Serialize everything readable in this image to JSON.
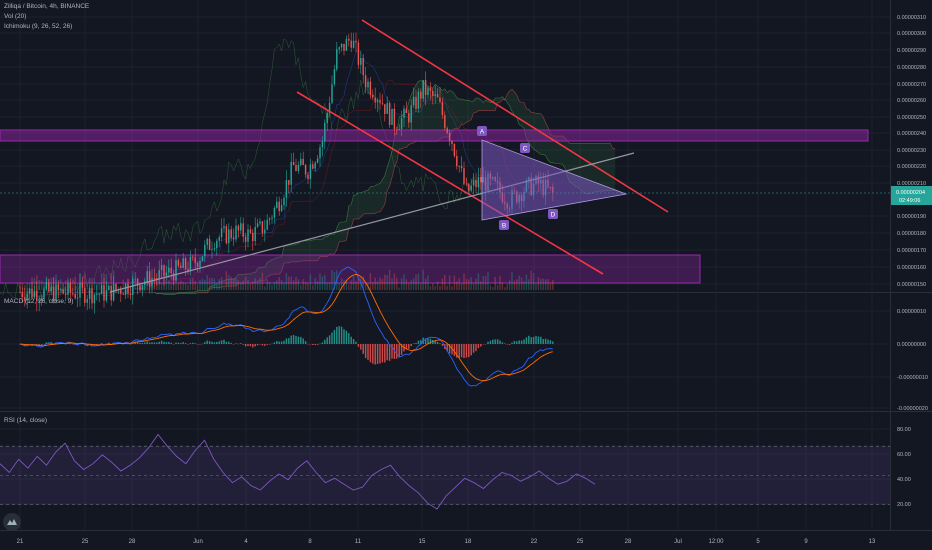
{
  "legend": {
    "symbol": "Zilliqa / Bitcoin, 4h, BINANCE",
    "volume": "Vol (20)",
    "ichimoku": "Ichimoku (9, 26, 52, 26)",
    "macd": "MACD (12, 26, close, 9)",
    "rsi": "RSI (14, close)"
  },
  "price_axis": {
    "ticks": [
      "0.00000310",
      "0.00000300",
      "0.00000290",
      "0.00000280",
      "0.00000270",
      "0.00000260",
      "0.00000250",
      "0.00000240",
      "0.00000230",
      "0.00000220",
      "0.00000210",
      "0.00000190",
      "0.00000180",
      "0.00000170",
      "0.00000160",
      "0.00000150"
    ],
    "current_price": "0.00000204",
    "countdown": "02:49:06"
  },
  "macd_axis": {
    "ticks": [
      "0.00000010",
      "0.00000000",
      "-0.00000010",
      "-0.00000020"
    ]
  },
  "rsi_axis": {
    "ticks": [
      "80.00",
      "60.00",
      "40.00",
      "20.00"
    ]
  },
  "time_axis": {
    "ticks": [
      "21",
      "25",
      "28",
      "Jun",
      "4",
      "8",
      "11",
      "15",
      "18",
      "22",
      "25",
      "28",
      "Jul",
      "12:00",
      "5",
      "9",
      "13"
    ]
  },
  "patterns": {
    "points": [
      "A",
      "B",
      "C",
      "D"
    ]
  },
  "colors": {
    "background": "#131722",
    "bull": "#26a69a",
    "bear": "#ef5350",
    "trend": "#f23645",
    "zone": "#9c27b0",
    "triangle": "#7e57c2",
    "macd": "#2962ff",
    "signal": "#ff6d00",
    "rsi": "#7e57c2",
    "price_tag": "#26a69a"
  },
  "chart_data": [
    {
      "type": "candlestick",
      "title": "Zilliqa / Bitcoin, 4h, BINANCE",
      "ylim": [
        1.48e-06,
        3.17e-06
      ],
      "close_path": [
        {
          "day": 19,
          "close": 1.47e-06
        },
        {
          "day": 25,
          "close": 1.46e-06
        },
        {
          "day": 27,
          "close": 1.52e-06
        },
        {
          "day": 29,
          "close": 1.57e-06
        },
        {
          "day": 31,
          "close": 1.63e-06
        },
        {
          "day": 32.5,
          "close": 1.78e-06
        },
        {
          "day": 34,
          "close": 1.82e-06
        },
        {
          "day": 35,
          "close": 1.8e-06
        },
        {
          "day": 36,
          "close": 1.85e-06
        },
        {
          "day": 37,
          "close": 2e-06
        },
        {
          "day": 38,
          "close": 2.2e-06
        },
        {
          "day": 39,
          "close": 2.18e-06
        },
        {
          "day": 40,
          "close": 2.35e-06
        },
        {
          "day": 41,
          "close": 2.85e-06
        },
        {
          "day": 42,
          "close": 2.95e-06
        },
        {
          "day": 43,
          "close": 2.7e-06
        },
        {
          "day": 44,
          "close": 2.6e-06
        },
        {
          "day": 45,
          "close": 2.45e-06
        },
        {
          "day": 46,
          "close": 2.5e-06
        },
        {
          "day": 47,
          "close": 2.65e-06
        },
        {
          "day": 48,
          "close": 2.58e-06
        },
        {
          "day": 49,
          "close": 2.35e-06
        },
        {
          "day": 50,
          "close": 2.05e-06
        },
        {
          "day": 51,
          "close": 2.12e-06
        },
        {
          "day": 52,
          "close": 2.08e-06
        },
        {
          "day": 53,
          "close": 2e-06
        },
        {
          "day": 54,
          "close": 2.07e-06
        },
        {
          "day": 55,
          "close": 2.1e-06
        },
        {
          "day": 56,
          "close": 2.04e-06
        }
      ],
      "volume_present": true
    },
    {
      "type": "bar",
      "title": "MACD (12, 26, close, 9)",
      "ylim": [
        -2e-07,
        1.3e-07
      ]
    },
    {
      "type": "line",
      "title": "RSI (14, close)",
      "ylim": [
        14,
        92
      ],
      "bands": [
        30,
        70
      ],
      "midline": 50,
      "series": [
        {
          "values": [
            58,
            52,
            61,
            55,
            63,
            57,
            66,
            72,
            60,
            54,
            58,
            64,
            59,
            53,
            57,
            62,
            69,
            78,
            70,
            63,
            58,
            67,
            74,
            61,
            52,
            45,
            49,
            43,
            40,
            46,
            51,
            47,
            55,
            60,
            52,
            45,
            48,
            44,
            40,
            42,
            50,
            54,
            57,
            49,
            43,
            38,
            31,
            27,
            36,
            42,
            48,
            45,
            41,
            47,
            52,
            50,
            46,
            49,
            53,
            48,
            44,
            46,
            51,
            48,
            44
          ]
        }
      ]
    }
  ]
}
